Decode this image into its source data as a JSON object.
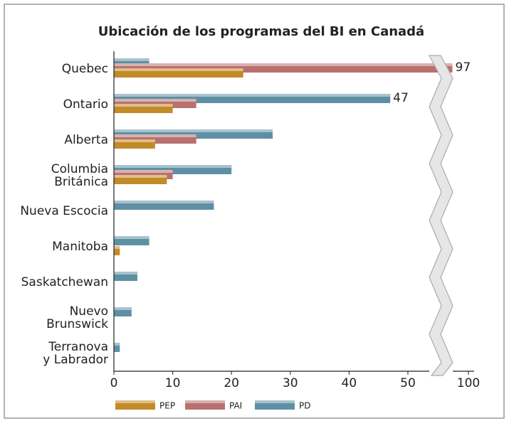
{
  "chart_data": {
    "type": "bar",
    "orientation": "horizontal",
    "title": "Ubicación de los programas  del BI en Canadá",
    "categories": [
      "Quebec",
      "Ontario",
      "Alberta",
      "Columbia\nBritánica",
      "Nueva Escocia",
      "Manitoba",
      "Saskatchewan",
      "Nuevo\nBrunswick",
      "Terranova\ny Labrador"
    ],
    "series": [
      {
        "name": "PD",
        "color": "#5e90a4",
        "values": [
          6,
          47,
          27,
          20,
          17,
          6,
          4,
          3,
          1
        ],
        "value_labels": [
          null,
          "47",
          null,
          null,
          null,
          null,
          null,
          null,
          null
        ]
      },
      {
        "name": "PAI",
        "color": "#b8716f",
        "values": [
          97,
          14,
          14,
          10,
          null,
          null,
          null,
          null,
          null
        ],
        "value_labels": [
          "97",
          null,
          null,
          null,
          null,
          null,
          null,
          null,
          null
        ]
      },
      {
        "name": "PEP",
        "color": "#c28a28",
        "values": [
          22,
          10,
          7,
          9,
          null,
          1,
          null,
          null,
          null
        ],
        "value_labels": [
          null,
          null,
          null,
          null,
          null,
          null,
          null,
          null,
          null
        ]
      }
    ],
    "xlim": [
      0,
      100
    ],
    "axis_break": [
      54,
      96
    ],
    "xticks": [
      0,
      10,
      20,
      30,
      40,
      50,
      100
    ],
    "legend": "bottom"
  }
}
